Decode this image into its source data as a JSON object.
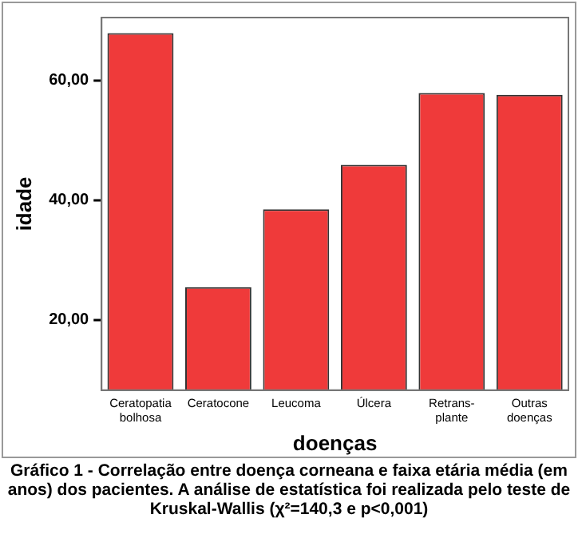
{
  "chart_data": {
    "type": "bar",
    "xlabel": "doenças",
    "ylabel": "idade",
    "categories": [
      "Ceratopatia\nbolhosa",
      "Ceratocone",
      "Leucoma",
      "Úlcera",
      "Retrans-\nplante",
      "Outras\ndoenças"
    ],
    "values": [
      67.9,
      25.5,
      38.5,
      45.9,
      57.9,
      57.6
    ],
    "color": "#ef3a3a",
    "ylim": [
      8.3,
      70.5
    ],
    "yticks": [
      {
        "value": 20,
        "label": "20,00"
      },
      {
        "value": 40,
        "label": "40,00"
      },
      {
        "value": 60,
        "label": "60,00"
      }
    ],
    "grid": false,
    "legend": false,
    "annotations": [
      "Gráfico 1 - Correlação entre doença corneana e faixa etária média (em anos) dos pacientes. A análise de estatística foi realizada pelo teste de Kruskal-Wallis (χ²=140,3 e p<0,001)"
    ]
  }
}
